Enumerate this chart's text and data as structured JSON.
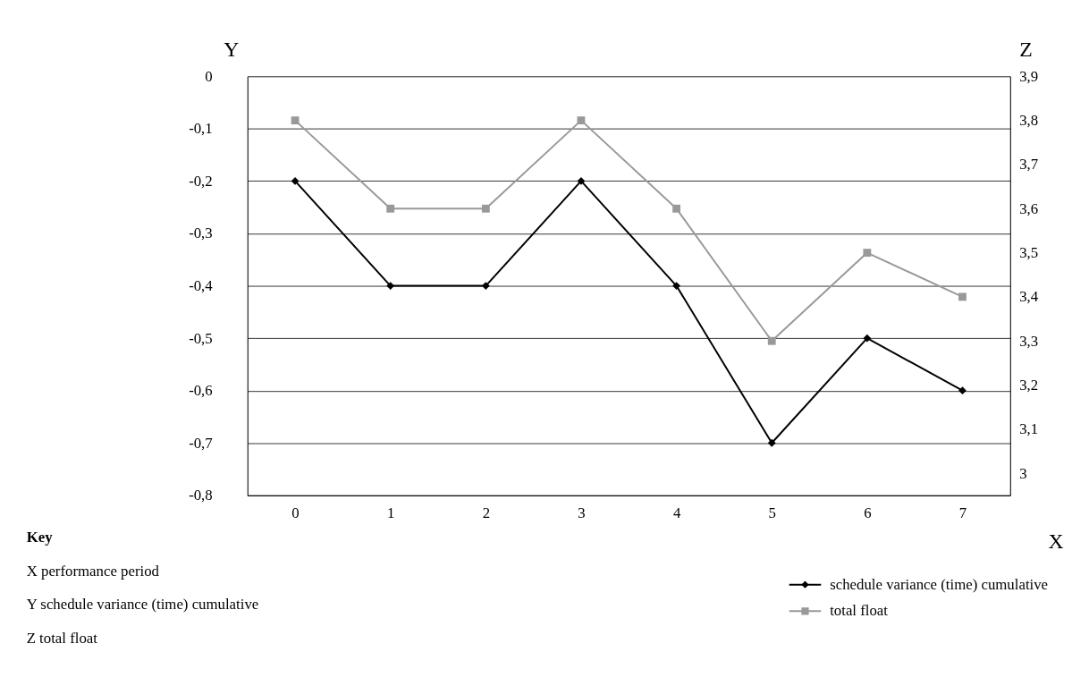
{
  "chart_data": {
    "type": "line",
    "xlabel": "X",
    "ylabel": "Y",
    "y2label": "Z",
    "categories": [
      "0",
      "1",
      "2",
      "3",
      "4",
      "5",
      "6",
      "7"
    ],
    "series": [
      {
        "name": "schedule variance (time) cumulative",
        "color": "#000000",
        "marker": "diamond",
        "values": [
          -0.2,
          -0.4,
          -0.4,
          -0.2,
          -0.4,
          -0.7,
          -0.5,
          -0.6
        ]
      },
      {
        "name": "total float",
        "color": "#999999",
        "marker": "square",
        "axis": "y2",
        "values": [
          3.8,
          3.6,
          3.6,
          3.8,
          3.6,
          3.3,
          3.5,
          3.4
        ]
      }
    ],
    "ylim": [
      -0.8,
      0
    ],
    "yticks": [
      {
        "value": -0.8,
        "label": "-0,8"
      },
      {
        "value": -0.7,
        "label": "-0,7"
      },
      {
        "value": -0.6,
        "label": "-0,6"
      },
      {
        "value": -0.5,
        "label": "-0,5"
      },
      {
        "value": -0.4,
        "label": "-0,4"
      },
      {
        "value": -0.3,
        "label": "-0,3"
      },
      {
        "value": -0.2,
        "label": "-0,2"
      },
      {
        "value": -0.1,
        "label": "-0,1"
      },
      {
        "value": 0,
        "label": "0"
      }
    ],
    "y2lim": [
      2.95,
      3.9
    ],
    "y2ticks": [
      {
        "value": 3,
        "label": "3"
      },
      {
        "value": 3.1,
        "label": "3,1"
      },
      {
        "value": 3.2,
        "label": "3,2"
      },
      {
        "value": 3.3,
        "label": "3,3"
      },
      {
        "value": 3.4,
        "label": "3,4"
      },
      {
        "value": 3.5,
        "label": "3,5"
      },
      {
        "value": 3.6,
        "label": "3,6"
      },
      {
        "value": 3.7,
        "label": "3,7"
      },
      {
        "value": 3.8,
        "label": "3,8"
      },
      {
        "value": 3.9,
        "label": "3,9"
      }
    ],
    "grid": "y",
    "legend": "bottom right",
    "annotations": [
      "Key",
      "X    performance period",
      "Y    schedule variance (time) cumulative",
      "Z    total float"
    ]
  }
}
